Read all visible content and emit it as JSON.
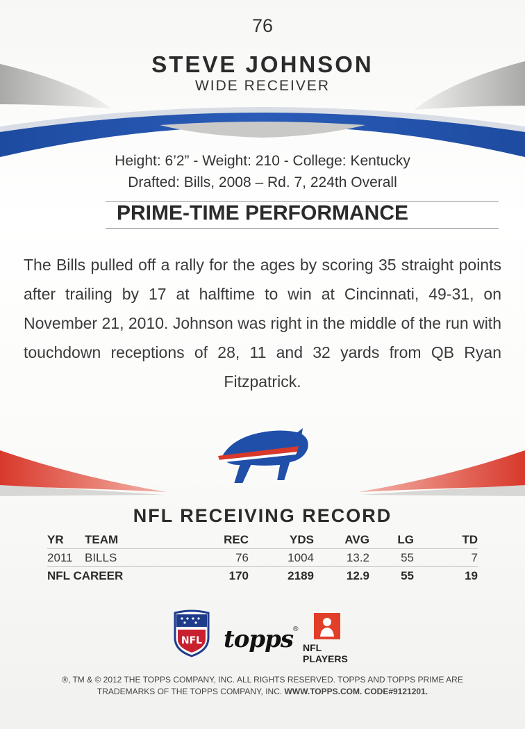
{
  "card": {
    "number": "76",
    "player_name": "STEVE JOHNSON",
    "position": "WIDE RECEIVER",
    "bio_line_1": "Height: 6’2” - Weight: 210 - College: Kentucky",
    "bio_line_2": "Drafted: Bills, 2008 – Rd. 7, 224th Overall",
    "section_title": "PRIME-TIME PERFORMANCE",
    "blurb": "The Bills pulled off a rally for the ages by scoring 35 straight points after trailing by 17 at halftime to win at Cincinnati, 49-31, on November 21, 2010. Johnson was right in the middle of the run with touchdown receptions of 28, 11 and 32 yards from QB Ryan Fitzpatrick.",
    "record_title": "NFL RECEIVING RECORD",
    "colors": {
      "bills_blue": "#1f4fa8",
      "bills_red": "#d8392b"
    },
    "team_logo": "buffalo-bills-logo"
  },
  "stats": {
    "headers": {
      "yr": "YR",
      "team": "TEAM",
      "rec": "REC",
      "yds": "YDS",
      "avg": "AVG",
      "lg": "LG",
      "td": "TD"
    },
    "season": {
      "yr": "2011",
      "team": "BILLS",
      "rec": "76",
      "yds": "1004",
      "avg": "13.2",
      "lg": "55",
      "td": "7"
    },
    "career": {
      "label": "NFL CAREER",
      "rec": "170",
      "yds": "2189",
      "avg": "12.9",
      "lg": "55",
      "td": "19"
    }
  },
  "logos": {
    "nfl": "NFL",
    "topps": "topps",
    "registered": "®",
    "nfl_players": "NFL PLAYERS"
  },
  "legal": {
    "line_1": "®, TM & © 2012 THE TOPPS COMPANY, INC. ALL RIGHTS RESERVED. TOPPS AND TOPPS PRIME ARE",
    "line_2_prefix": "TRADEMARKS OF THE TOPPS COMPANY, INC.",
    "line_2_bold": "WWW.TOPPS.COM. CODE#9121201."
  }
}
